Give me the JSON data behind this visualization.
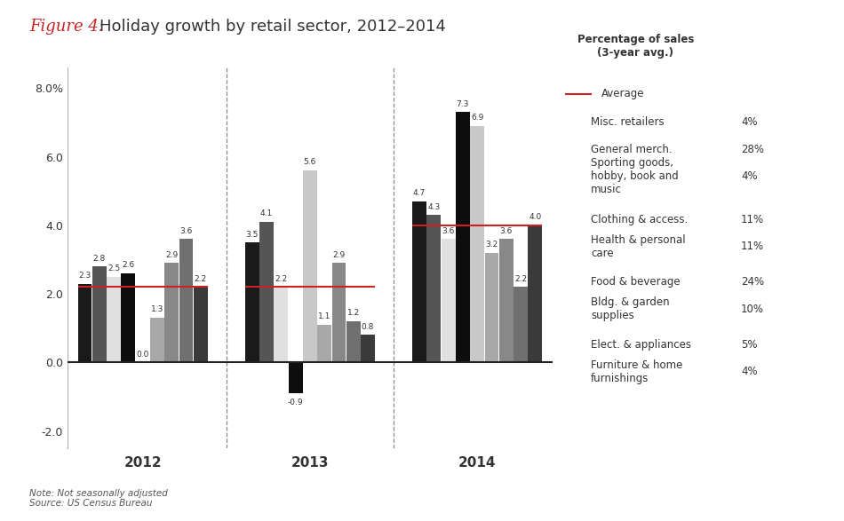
{
  "title_italic": "Figure 4:",
  "title_main": "  Holiday growth by retail sector, 2012–2014",
  "subtitle": "Percentage of sales\n(3-year avg.)",
  "years": [
    "2012",
    "2013",
    "2014"
  ],
  "legend_entries": [
    {
      "label": "Misc. retailers",
      "pct": "4%",
      "color": "#c8c8c8"
    },
    {
      "label": "General merch.",
      "pct": "28%",
      "color": "#888888"
    },
    {
      "label": "Sporting goods,\nhobby, book and\nmusic",
      "pct": "4%",
      "color": "#555555"
    },
    {
      "label": "Clothing & access.",
      "pct": "11%",
      "color": "#1a1a1a"
    },
    {
      "label": "Health & personal\ncare",
      "pct": "11%",
      "color": "#e0e0e0"
    },
    {
      "label": "Food & beverage",
      "pct": "24%",
      "color": "#a8a8a8"
    },
    {
      "label": "Bldg. & garden\nsupplies",
      "pct": "10%",
      "color": "#707070"
    },
    {
      "label": "Elect. & appliances",
      "pct": "5%",
      "color": "#3a3a3a"
    },
    {
      "label": "Furniture & home\nfurnishings",
      "pct": "4%",
      "color": "#0d0d0d"
    }
  ],
  "bar_order_colors": [
    "#1a1a1a",
    "#555555",
    "#e0e0e0",
    "#0d0d0d",
    "#c8c8c8",
    "#a8a8a8",
    "#888888",
    "#707070",
    "#3a3a3a"
  ],
  "data": {
    "2012": [
      2.3,
      2.8,
      2.5,
      2.6,
      0.0,
      1.3,
      2.9,
      3.6,
      2.2
    ],
    "2013": [
      3.5,
      4.1,
      2.2,
      -0.9,
      5.6,
      1.1,
      2.9,
      1.2,
      0.8
    ],
    "2014": [
      4.7,
      4.3,
      3.6,
      7.3,
      6.9,
      3.2,
      3.6,
      2.2,
      4.0
    ]
  },
  "avg_lines": {
    "2012": 2.2,
    "2013": 2.2,
    "2014": 4.0
  },
  "ylim_min": -2.5,
  "ylim_max": 8.6,
  "yticks": [
    -2.0,
    0.0,
    2.0,
    4.0,
    6.0,
    8.0
  ],
  "ytick_labels": [
    "-2.0",
    "0.0",
    "2.0",
    "4.0",
    "6.0",
    "8.0%"
  ],
  "avg_color": "#cc2222",
  "note": "Note: Not seasonally adjusted\nSource: US Census Bureau",
  "background_color": "#ffffff"
}
